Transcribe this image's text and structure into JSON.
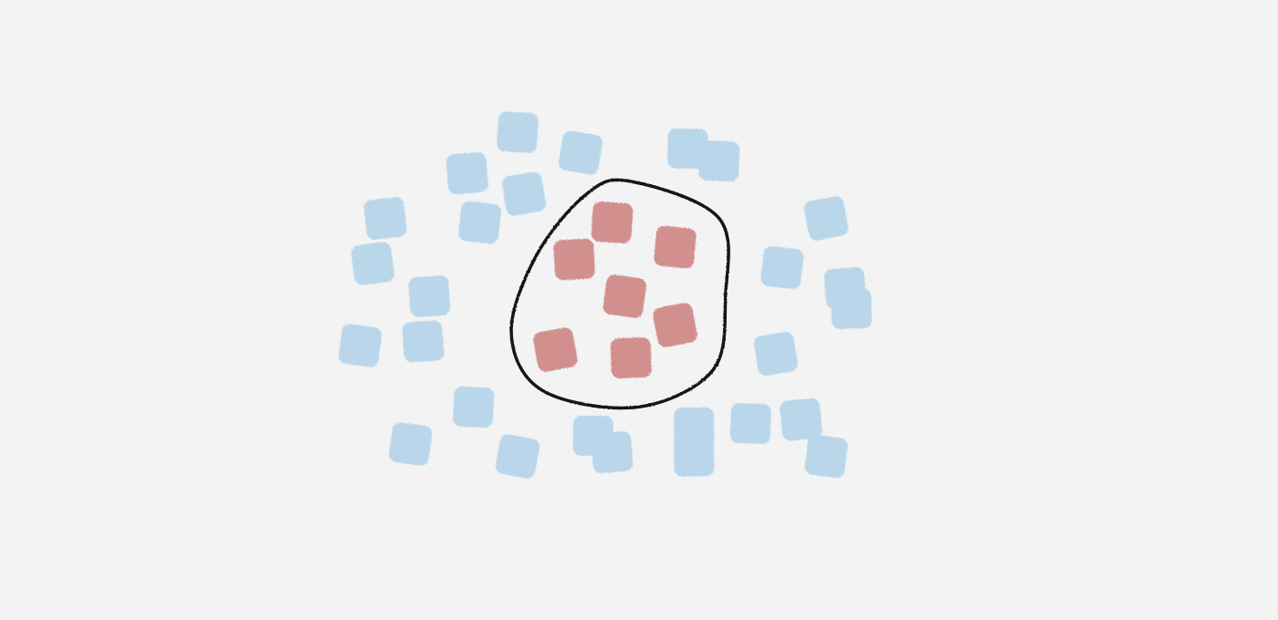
{
  "chart_data": {
    "type": "scatter",
    "title": "",
    "xlabel": "",
    "ylabel": "",
    "xlim": [
      0,
      10
    ],
    "ylim": [
      0,
      10
    ],
    "grid": false,
    "legend": "none",
    "colors": {
      "background": "#f3f3f3",
      "axes": "#b9b9b9",
      "outer_class": "#b8d5ea",
      "inner_class": "#d08a89",
      "boundary": "#141414"
    },
    "series": [
      {
        "class": "outer",
        "color": "#b8d5ea",
        "points": [
          {
            "x": 3.0,
            "y": 9.0
          },
          {
            "x": 4.0,
            "y": 8.5
          },
          {
            "x": 2.2,
            "y": 8.0
          },
          {
            "x": 3.1,
            "y": 7.5
          },
          {
            "x": 0.9,
            "y": 6.9
          },
          {
            "x": 2.4,
            "y": 6.8
          },
          {
            "x": 0.7,
            "y": 5.8
          },
          {
            "x": 1.6,
            "y": 5.0
          },
          {
            "x": 0.5,
            "y": 3.8
          },
          {
            "x": 1.5,
            "y": 3.9
          },
          {
            "x": 2.3,
            "y": 2.3
          },
          {
            "x": 1.3,
            "y": 1.4
          },
          {
            "x": 3.0,
            "y": 1.1
          },
          {
            "x": 4.2,
            "y": 1.6
          },
          {
            "x": 4.5,
            "y": 1.2
          },
          {
            "x": 5.8,
            "y": 1.8
          },
          {
            "x": 5.8,
            "y": 1.1
          },
          {
            "x": 6.7,
            "y": 1.9
          },
          {
            "x": 7.5,
            "y": 2.0
          },
          {
            "x": 7.9,
            "y": 1.1
          },
          {
            "x": 7.1,
            "y": 3.6
          },
          {
            "x": 7.2,
            "y": 5.7
          },
          {
            "x": 7.9,
            "y": 6.9
          },
          {
            "x": 8.2,
            "y": 5.2
          },
          {
            "x": 8.3,
            "y": 4.7
          },
          {
            "x": 5.7,
            "y": 8.6
          },
          {
            "x": 6.2,
            "y": 8.3
          }
        ]
      },
      {
        "class": "inner",
        "color": "#d08a89",
        "points": [
          {
            "x": 4.5,
            "y": 6.8
          },
          {
            "x": 5.5,
            "y": 6.2
          },
          {
            "x": 3.9,
            "y": 5.9
          },
          {
            "x": 4.7,
            "y": 5.0
          },
          {
            "x": 5.5,
            "y": 4.3
          },
          {
            "x": 3.6,
            "y": 3.7
          },
          {
            "x": 4.8,
            "y": 3.5
          }
        ]
      }
    ],
    "decision_boundary": {
      "shape": "closed-curve",
      "points": [
        {
          "x": 4.8,
          "y": 7.8
        },
        {
          "x": 6.2,
          "y": 6.9
        },
        {
          "x": 6.3,
          "y": 5.0
        },
        {
          "x": 6.1,
          "y": 3.2
        },
        {
          "x": 4.9,
          "y": 2.3
        },
        {
          "x": 3.4,
          "y": 2.7
        },
        {
          "x": 2.9,
          "y": 4.1
        },
        {
          "x": 3.3,
          "y": 6.0
        },
        {
          "x": 4.1,
          "y": 7.5
        }
      ]
    }
  }
}
